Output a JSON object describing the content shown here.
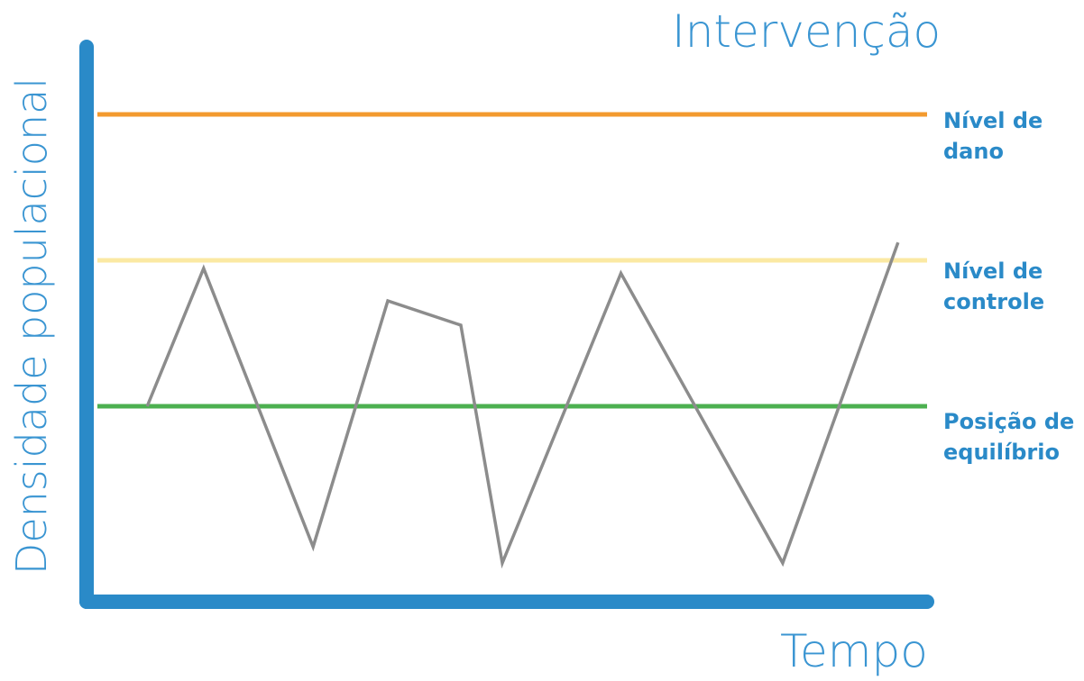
{
  "chart_data": {
    "type": "line",
    "title": "Intervenção",
    "xlabel": "Tempo",
    "ylabel": "Densidade populacional",
    "ylim": [
      0,
      100
    ],
    "xlim": [
      0,
      100
    ],
    "grid": false,
    "axis_color": "#2a8ac8",
    "text_color": "#3a95d2",
    "reference_lines": [
      {
        "name_lines": [
          "Nível de",
          "dano"
        ],
        "y": 88,
        "color": "#f39a2e"
      },
      {
        "name_lines": [
          "Nível de",
          "controle"
        ],
        "y": 61,
        "color": "#fbe9a3"
      },
      {
        "name_lines": [
          "Posição de",
          "equilíbrio"
        ],
        "y": 34,
        "color": "#4cb050"
      }
    ],
    "series": [
      {
        "color": "#8c8c8c",
        "x": [
          6,
          12.8,
          26,
          35,
          43.8,
          48.8,
          63.1,
          82.6,
          96.5
        ],
        "y": [
          34,
          59.5,
          8,
          53.5,
          49,
          5,
          58.6,
          5,
          64.3
        ]
      }
    ]
  }
}
